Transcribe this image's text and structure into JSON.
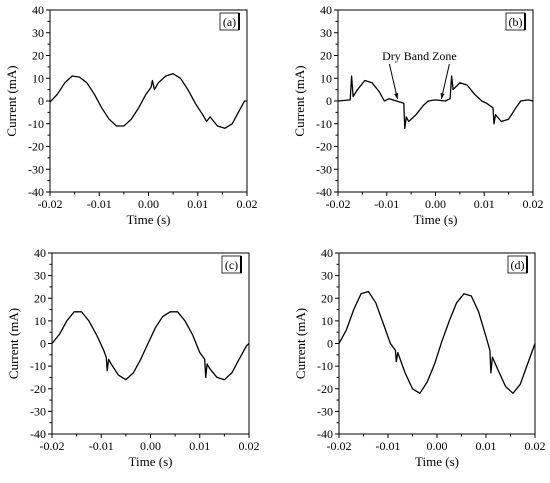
{
  "chart_data": [
    {
      "type": "line",
      "panel_label": "(a)",
      "xlabel": "Time (s)",
      "ylabel": "Current (mA)",
      "xlim": [
        -0.02,
        0.02
      ],
      "ylim": [
        -40,
        40
      ],
      "xticks": [
        "-0.02",
        "-0.01",
        "0.00",
        "0.01",
        "0.02"
      ],
      "yticks": [
        "40",
        "30",
        "20",
        "10",
        "0",
        "-10",
        "-20",
        "-30",
        "-40"
      ],
      "series": [
        {
          "style": "solid",
          "x": [
            -0.02,
            -0.0185,
            -0.017,
            -0.0155,
            -0.014,
            -0.0125,
            -0.011,
            -0.0095,
            -0.008,
            -0.0065,
            -0.005,
            -0.0035,
            -0.002,
            -0.0005,
            0.0005,
            0.0008,
            0.0012,
            0.002,
            0.0035,
            0.005,
            0.0065,
            0.008,
            0.0095,
            0.011,
            0.0118,
            0.0125,
            0.014,
            0.0155,
            0.017,
            0.0185,
            0.0195,
            0.02
          ],
          "y": [
            -0.5,
            3,
            8,
            11,
            10.5,
            8,
            3,
            -3,
            -8,
            -11,
            -11,
            -8,
            -3,
            3,
            6,
            9,
            5,
            8,
            11,
            12,
            10,
            5,
            -1,
            -6,
            -9,
            -7,
            -11,
            -12,
            -10,
            -4,
            0,
            0
          ]
        }
      ]
    },
    {
      "type": "line",
      "panel_label": "(b)",
      "xlabel": "Time (s)",
      "ylabel": "Current (mA)",
      "xlim": [
        -0.02,
        0.02
      ],
      "ylim": [
        -40,
        40
      ],
      "xticks": [
        "-0.02",
        "-0.01",
        "0.00",
        "0.01",
        "0.02"
      ],
      "yticks": [
        "40",
        "30",
        "20",
        "10",
        "0",
        "-10",
        "-20",
        "-30",
        "-40"
      ],
      "annotation": {
        "text": "Dry Band Zone",
        "targets_x": [
          -0.0078,
          0.0012
        ],
        "targets_y": [
          0,
          0
        ]
      },
      "series": [
        {
          "style": "solid",
          "x": [
            -0.02,
            -0.0175,
            -0.0172,
            -0.0169,
            -0.016,
            -0.0145,
            -0.013,
            -0.0115,
            -0.0105,
            -0.0095,
            -0.008,
            -0.0065,
            -0.0063,
            -0.006,
            -0.0055,
            -0.004,
            -0.0025,
            -0.0015,
            0.0,
            0.002,
            0.003,
            0.0033,
            0.0036,
            0.005,
            0.0065,
            0.008,
            0.0095,
            0.0105,
            0.0118,
            0.012,
            0.0123,
            0.0135,
            0.015,
            0.0165,
            0.0175,
            0.019,
            0.02
          ],
          "y": [
            0,
            0.5,
            11,
            2,
            5,
            9,
            8,
            4,
            0,
            1,
            0,
            -1,
            -12,
            -7,
            -9,
            -6,
            -2,
            0,
            0.5,
            0,
            1,
            11,
            5,
            8,
            7,
            3,
            0,
            -1,
            -3,
            -10,
            -6,
            -9,
            -8,
            -3,
            0,
            0.5,
            0
          ]
        }
      ]
    },
    {
      "type": "line",
      "panel_label": "(c)",
      "xlabel": "Time (s)",
      "ylabel": "Current (mA)",
      "xlim": [
        -0.02,
        0.02
      ],
      "ylim": [
        -40,
        40
      ],
      "xticks": [
        "-0.02",
        "-0.01",
        "0.00",
        "0.01",
        "0.02"
      ],
      "yticks": [
        "40",
        "30",
        "20",
        "10",
        "0",
        "-10",
        "-20",
        "-30",
        "-40"
      ],
      "series": [
        {
          "style": "solid",
          "x": [
            -0.02,
            -0.0185,
            -0.017,
            -0.0155,
            -0.014,
            -0.0125,
            -0.011,
            -0.0095,
            -0.009,
            -0.0088,
            -0.0085,
            -0.008,
            -0.0065,
            -0.005,
            -0.0035,
            -0.002,
            -0.0005,
            0.001,
            0.0025,
            0.004,
            0.0055,
            0.007,
            0.0085,
            0.01,
            0.011,
            0.0112,
            0.0115,
            0.012,
            0.0135,
            0.015,
            0.0165,
            0.018,
            0.0195,
            0.02
          ],
          "y": [
            0,
            4,
            10,
            14,
            14,
            10,
            4,
            -3,
            -6,
            -12,
            -7,
            -9,
            -14,
            -16,
            -13,
            -7,
            0,
            7,
            12,
            14,
            14,
            10,
            4,
            -4,
            -7,
            -15,
            -9,
            -11,
            -15,
            -16,
            -13,
            -7,
            -1,
            0
          ]
        }
      ]
    },
    {
      "type": "line",
      "panel_label": "(d)",
      "xlabel": "Time (s)",
      "ylabel": "Current (mA)",
      "xlim": [
        -0.02,
        0.02
      ],
      "ylim": [
        -40,
        40
      ],
      "xticks": [
        "-0.02",
        "-0.01",
        "0.00",
        "0.01",
        "0.02"
      ],
      "yticks": [
        "40",
        "30",
        "20",
        "10",
        "0",
        "-10",
        "-20",
        "-30",
        "-40"
      ],
      "series": [
        {
          "style": "solid",
          "x": [
            -0.02,
            -0.0185,
            -0.017,
            -0.0155,
            -0.014,
            -0.0125,
            -0.011,
            -0.0095,
            -0.0085,
            -0.0083,
            -0.008,
            -0.0065,
            -0.005,
            -0.0035,
            -0.002,
            -0.0005,
            0.001,
            0.0025,
            0.004,
            0.0055,
            0.007,
            0.0085,
            0.01,
            0.0108,
            0.011,
            0.0113,
            0.0125,
            0.014,
            0.0155,
            0.017,
            0.0185,
            0.02
          ],
          "y": [
            0,
            6,
            15,
            22,
            23,
            18,
            9,
            0,
            -3,
            -8,
            -4,
            -13,
            -20,
            -22,
            -17,
            -9,
            1,
            10,
            18,
            22,
            21,
            14,
            3,
            -3,
            -13,
            -6,
            -12,
            -19,
            -22,
            -18,
            -9,
            0
          ]
        }
      ]
    }
  ]
}
